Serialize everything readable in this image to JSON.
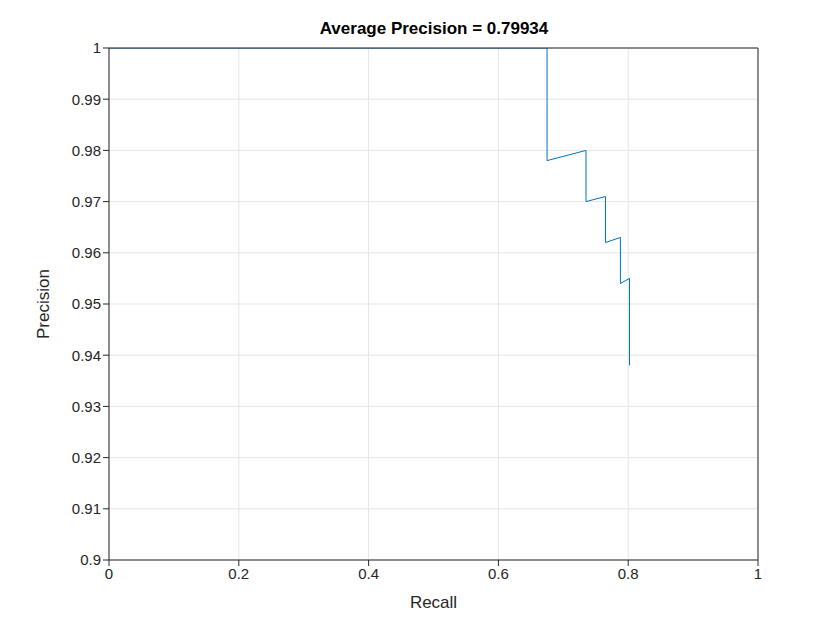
{
  "chart_data": {
    "type": "line",
    "title": "Average Precision = 0.79934",
    "x_label": "Recall",
    "y_label": "Precision",
    "x": [
      0,
      0.675,
      0.675,
      0.735,
      0.735,
      0.765,
      0.765,
      0.788,
      0.788,
      0.802,
      0.802
    ],
    "values": [
      1,
      1,
      0.978,
      0.98,
      0.97,
      0.971,
      0.962,
      0.963,
      0.954,
      0.955,
      0.938
    ],
    "color": "#0072bd",
    "xlim": [
      0,
      1
    ],
    "xticks": [
      0,
      0.2,
      0.4,
      0.6,
      0.8,
      1
    ],
    "ylim": [
      0.9,
      1
    ],
    "yticks": [
      0.9,
      0.91,
      0.92,
      0.93,
      0.94,
      0.95,
      0.96,
      0.97,
      0.98,
      0.99,
      1
    ],
    "grid": true
  }
}
